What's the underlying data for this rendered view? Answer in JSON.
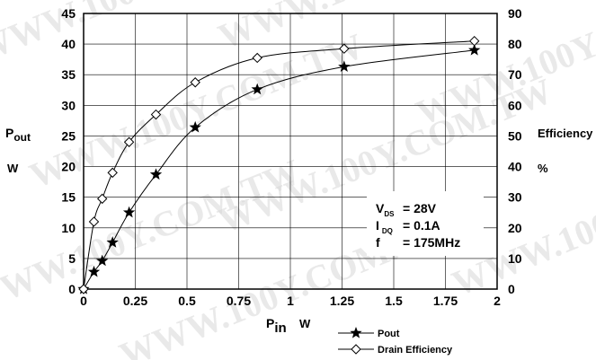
{
  "chart_data": {
    "type": "line",
    "xlabel": "P",
    "xlabel_sub": "in",
    "xlabel_unit": "W",
    "ylabel_left": "P",
    "ylabel_left_sub": "out",
    "ylabel_left_unit": "W",
    "ylabel_right": "Efficiency",
    "ylabel_right_unit": "%",
    "xlim": [
      0,
      2
    ],
    "ylim_left": [
      0,
      45
    ],
    "ylim_right": [
      0,
      90
    ],
    "x_ticks": [
      "0",
      "0.25",
      "0.5",
      "0.75",
      "1",
      "1.25",
      "1.5",
      "1.75",
      "2"
    ],
    "y_left_ticks": [
      "0",
      "5",
      "10",
      "15",
      "20",
      "25",
      "30",
      "35",
      "40",
      "45"
    ],
    "y_right_ticks": [
      "0",
      "10",
      "20",
      "30",
      "40",
      "50",
      "60",
      "70",
      "80",
      "90"
    ],
    "grid": true,
    "legend_position": "bottom-right",
    "series": [
      {
        "name": "Pout",
        "axis": "left",
        "marker": "star",
        "x": [
          0,
          0.05,
          0.09,
          0.14,
          0.22,
          0.35,
          0.54,
          0.84,
          1.26,
          1.89
        ],
        "y": [
          0,
          2.8,
          4.6,
          7.6,
          12.5,
          18.7,
          26.4,
          32.6,
          36.3,
          39.0
        ]
      },
      {
        "name": "Drain Efficiency",
        "axis": "right",
        "marker": "diamond",
        "x": [
          0,
          0.05,
          0.09,
          0.14,
          0.22,
          0.35,
          0.54,
          0.84,
          1.26,
          1.89
        ],
        "y": [
          0,
          22,
          29.5,
          38,
          48,
          57,
          67.5,
          75.5,
          78.5,
          81
        ]
      }
    ],
    "annotations": [
      {
        "label": "V",
        "sub": "DS",
        "value": "= 28V"
      },
      {
        "label": "I",
        "sub": "DQ",
        "value": "= 0.1A"
      },
      {
        "label": "f",
        "sub": "",
        "value": "= 175MHz"
      }
    ],
    "watermark": "WWW.100Y.COM.TW"
  }
}
